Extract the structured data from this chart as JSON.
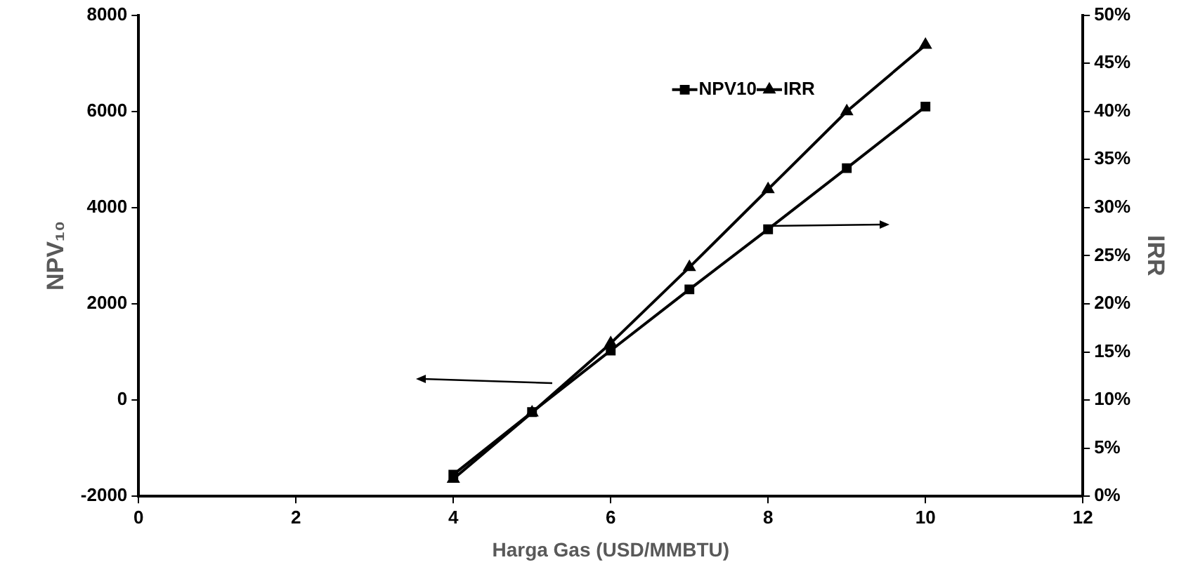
{
  "chart_data": {
    "type": "line",
    "xlabel": "Harga Gas (USD/MMBTU)",
    "ylabel": "NPV₁₀",
    "y2label": "IRR",
    "x": [
      4,
      5,
      6,
      7,
      8,
      9,
      10
    ],
    "series": [
      {
        "name": "NPV10",
        "color": "#000000",
        "marker": "square",
        "values": [
          -1550,
          -250,
          1030,
          2300,
          3550,
          4820,
          6100
        ]
      },
      {
        "name": "IRR",
        "color": "#000000",
        "marker": "triangle",
        "axis": "y2",
        "values": [
          1.8,
          8.7,
          15.9,
          23.8,
          31.9,
          40,
          46.9
        ]
      }
    ],
    "xlim": [
      0,
      12
    ],
    "xticks": [
      0,
      2,
      4,
      6,
      8,
      10,
      12
    ],
    "ylim": [
      -2000,
      8000
    ],
    "yticks": [
      -2000,
      0,
      2000,
      4000,
      6000,
      8000
    ],
    "y2lim": [
      0,
      50
    ],
    "y2ticks": [
      {
        "value": 0,
        "label": "0%"
      },
      {
        "value": 5,
        "label": "5%"
      },
      {
        "value": 10,
        "label": "10%"
      },
      {
        "value": 15,
        "label": "15%"
      },
      {
        "value": 20,
        "label": "20%"
      },
      {
        "value": 25,
        "label": "25%"
      },
      {
        "value": 30,
        "label": "30%"
      },
      {
        "value": 35,
        "label": "35%"
      },
      {
        "value": 40,
        "label": "40%"
      },
      {
        "value": 45,
        "label": "45%"
      },
      {
        "value": 50,
        "label": "50%"
      }
    ],
    "grid": false,
    "legend": "top right",
    "line_style": "solid"
  }
}
